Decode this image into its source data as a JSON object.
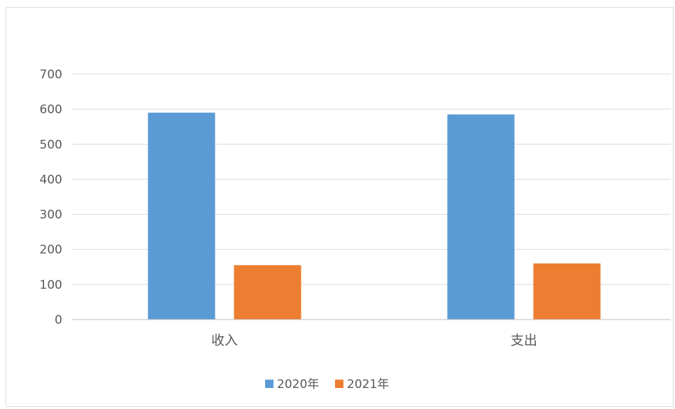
{
  "chart_data": {
    "type": "bar",
    "title": "",
    "xlabel": "",
    "ylabel": "",
    "categories": [
      "收入",
      "支出"
    ],
    "series": [
      {
        "name": "2020年",
        "color": "#5b9bd5",
        "values": [
          590,
          585
        ]
      },
      {
        "name": "2021年",
        "color": "#ed7d31",
        "values": [
          155,
          160
        ]
      }
    ],
    "ylim": [
      0,
      700
    ],
    "yticks": [
      "0",
      "100",
      "200",
      "300",
      "400",
      "500",
      "600",
      "700"
    ],
    "grid": true,
    "legend_position": "bottom",
    "gridline_color": "#d9d9d9"
  }
}
